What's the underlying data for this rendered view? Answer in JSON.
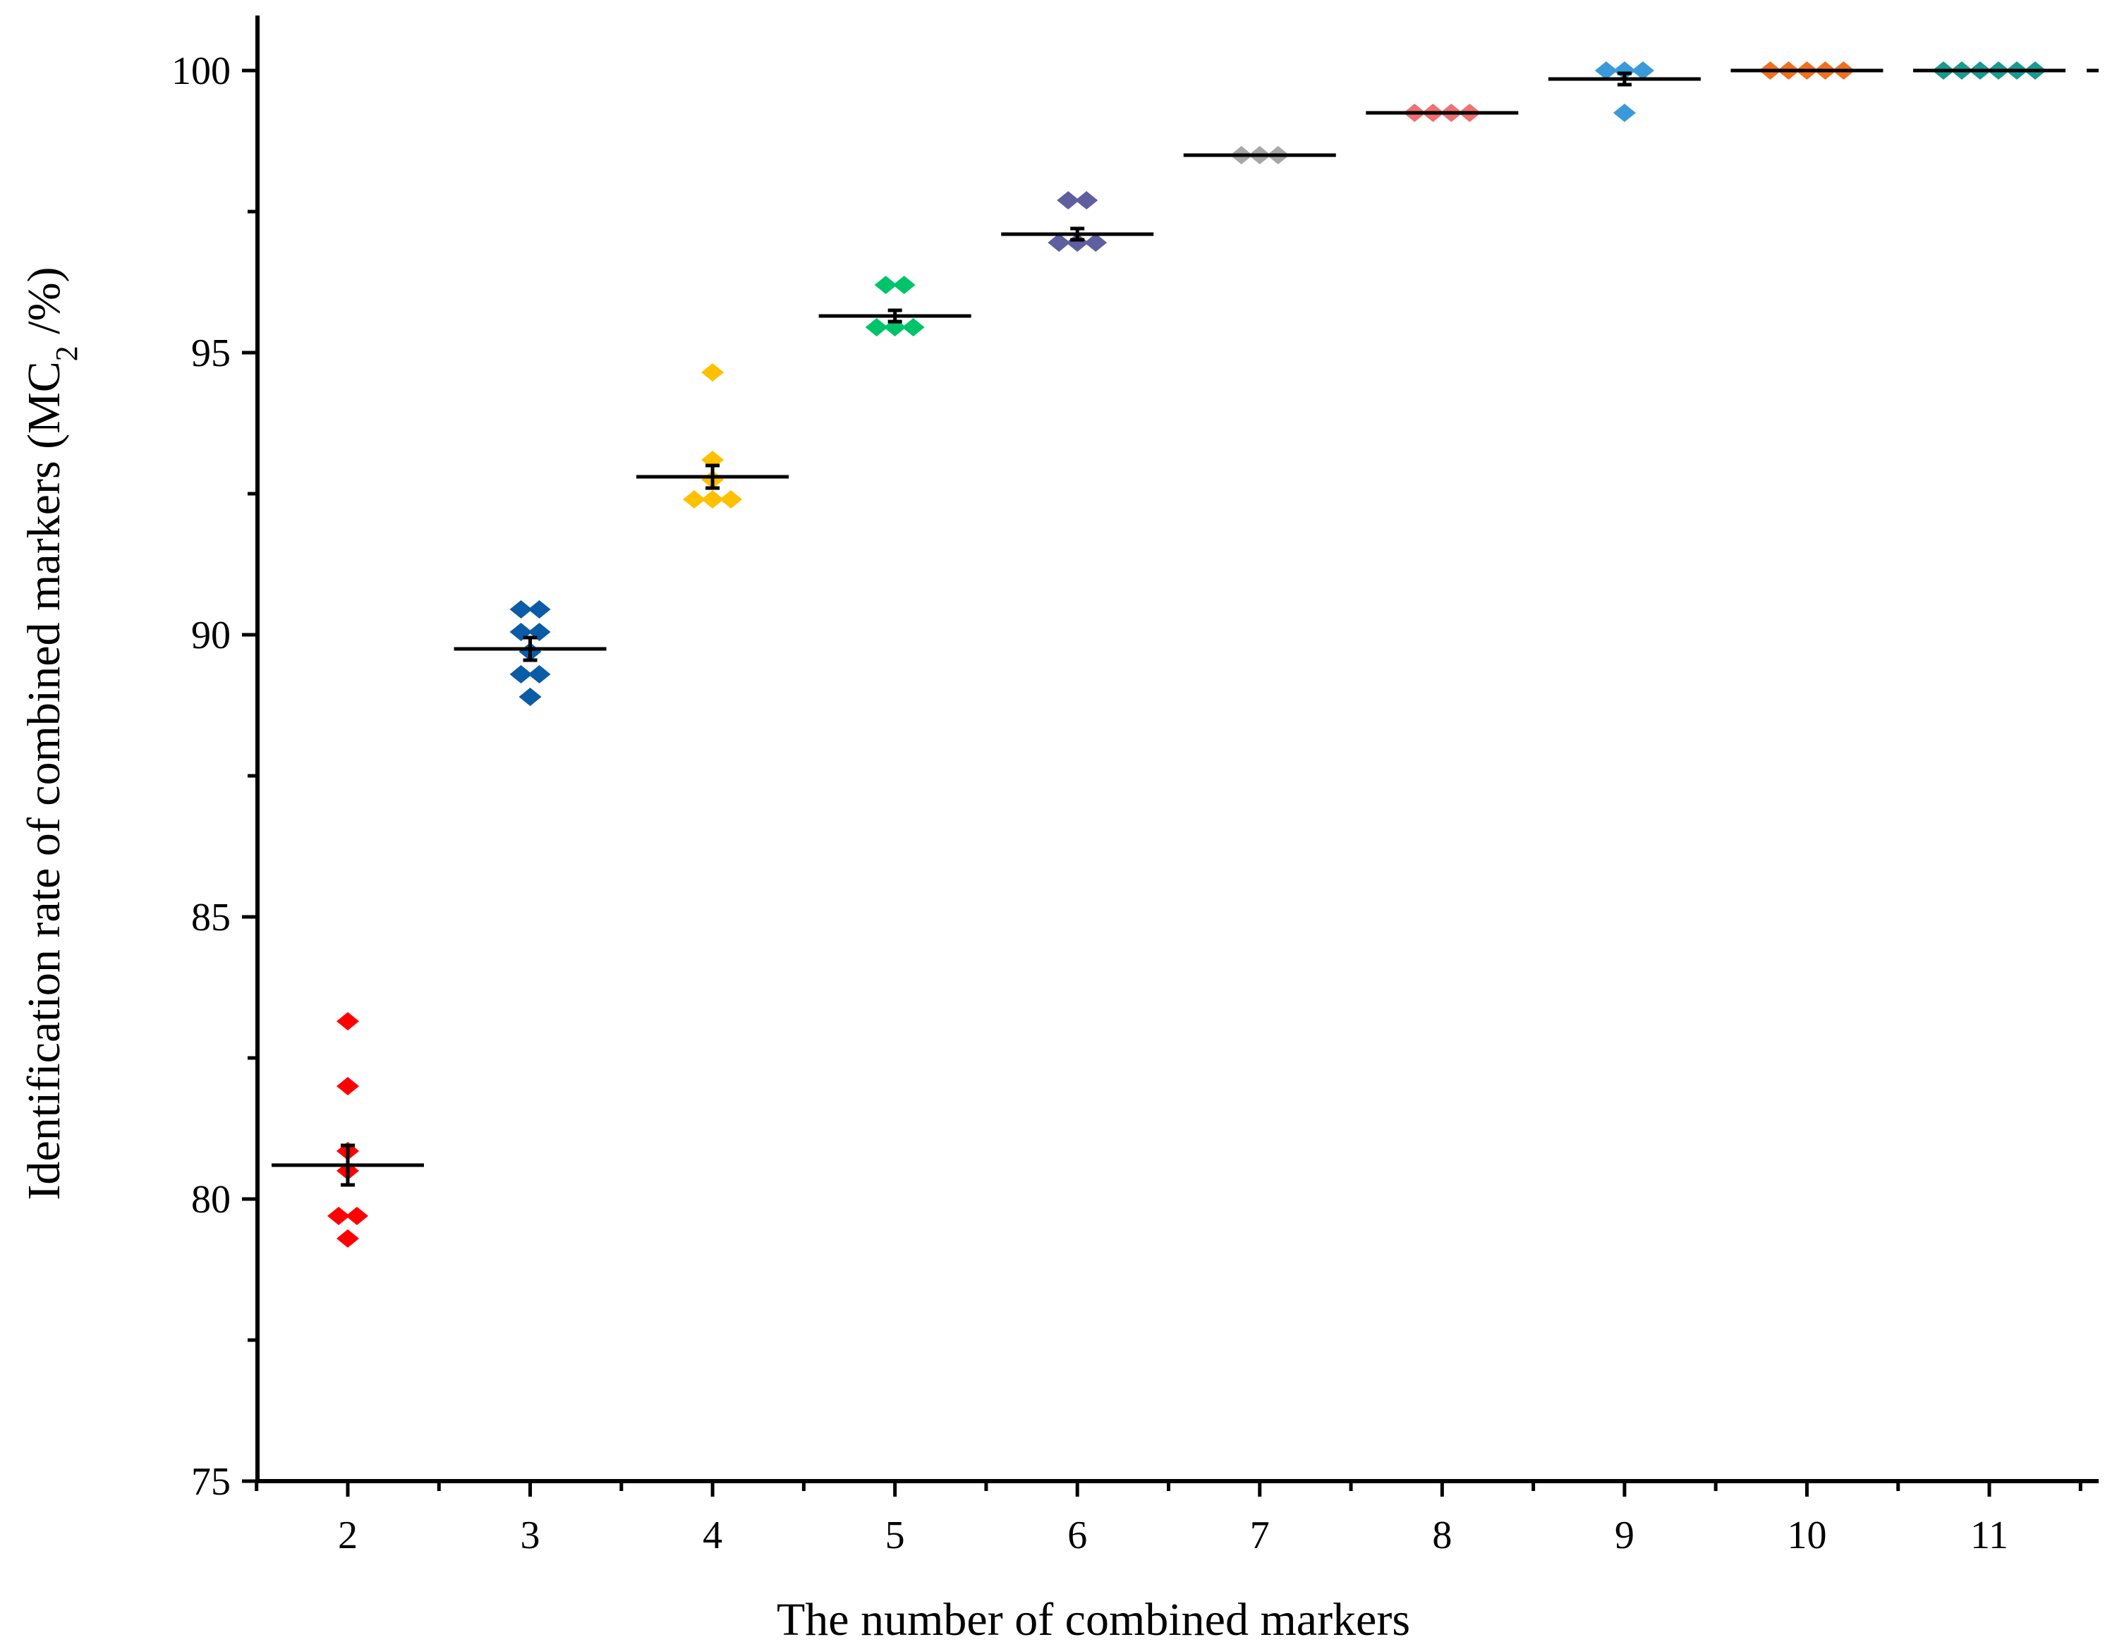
{
  "chart_data": {
    "type": "scatter",
    "title": "",
    "xlabel": "The number of combined markers",
    "ylabel_prefix": "Identification rate of combined markers (MC",
    "ylabel_sub": "2",
    "ylabel_suffix": " /%)",
    "ylim": [
      75,
      101
    ],
    "xlim": [
      1.5,
      11.6
    ],
    "y_ticks": [
      75,
      80,
      85,
      90,
      95,
      100
    ],
    "y_tick_labels": [
      "75",
      "80",
      "85",
      "90",
      "95",
      "100"
    ],
    "x_ticks": [
      2,
      3,
      4,
      5,
      6,
      7,
      8,
      9,
      10,
      11
    ],
    "x_tick_labels": [
      "2",
      "3",
      "4",
      "5",
      "6",
      "7",
      "8",
      "9",
      "10",
      "11"
    ],
    "groups": [
      {
        "x": 2,
        "color": "#ff0000",
        "mean": 80.6,
        "err": 0.35,
        "points": [
          83.15,
          82.0,
          80.85,
          80.5,
          79.7,
          79.7,
          79.3
        ]
      },
      {
        "x": 3,
        "color": "#0b5ba6",
        "mean": 89.75,
        "err": 0.2,
        "points": [
          90.45,
          90.45,
          90.05,
          90.05,
          89.7,
          89.3,
          89.3,
          88.9
        ]
      },
      {
        "x": 4,
        "color": "#ffc000",
        "mean": 92.8,
        "err": 0.2,
        "points": [
          94.65,
          93.1,
          92.75,
          92.4,
          92.4,
          92.4
        ]
      },
      {
        "x": 5,
        "color": "#00c46a",
        "mean": 95.65,
        "err": 0.1,
        "points": [
          96.2,
          96.2,
          95.45,
          95.45,
          95.45
        ]
      },
      {
        "x": 6,
        "color": "#5f5f9f",
        "mean": 97.1,
        "err": 0.1,
        "points": [
          97.7,
          97.7,
          96.95,
          96.95,
          96.95
        ]
      },
      {
        "x": 7,
        "color": "#a6a6a6",
        "mean": 98.5,
        "err": 0.0,
        "points": [
          98.5,
          98.5,
          98.5
        ]
      },
      {
        "x": 8,
        "color": "#f07070",
        "mean": 99.25,
        "err": 0.0,
        "points": [
          99.25,
          99.25,
          99.25,
          99.25
        ]
      },
      {
        "x": 9,
        "color": "#3a9ad9",
        "mean": 99.85,
        "err": 0.1,
        "points": [
          100.0,
          100.0,
          100.0,
          99.25
        ]
      },
      {
        "x": 10,
        "color": "#f07020",
        "mean": 100.0,
        "err": 0.0,
        "points": [
          100.0,
          100.0,
          100.0,
          100.0,
          100.0
        ]
      },
      {
        "x": 11,
        "color": "#1a9a90",
        "mean": 100.0,
        "err": 0.0,
        "points": [
          100.0,
          100.0,
          100.0,
          100.0,
          100.0,
          100.0
        ]
      }
    ]
  }
}
